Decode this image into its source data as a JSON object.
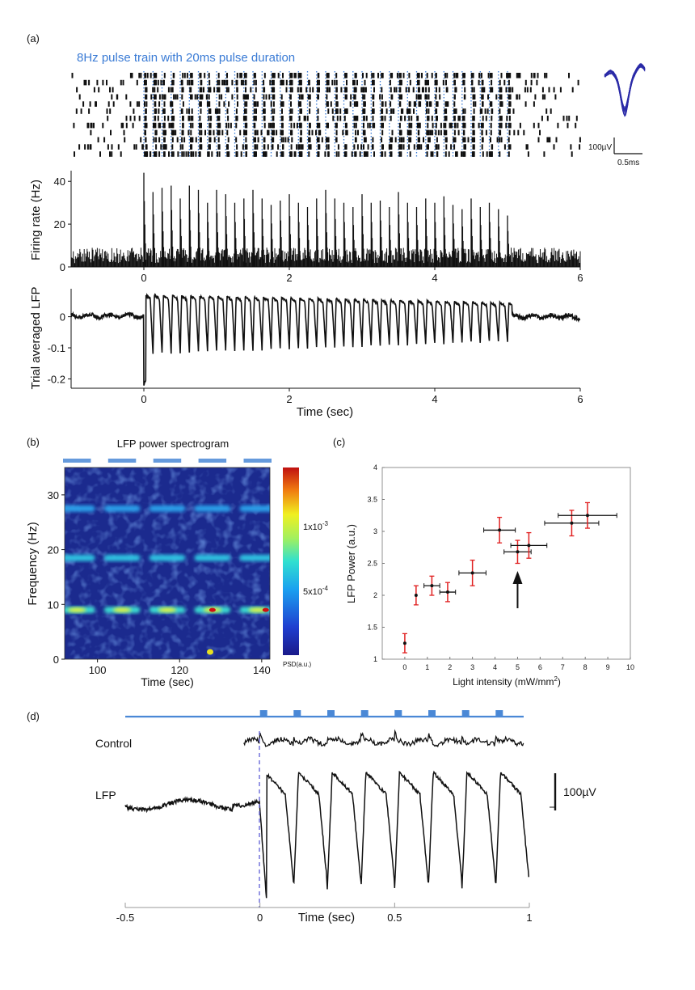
{
  "panel_labels": [
    "(a)",
    "(b)",
    "(c)",
    "(d)"
  ],
  "colors": {
    "blue": "#3a7bd5",
    "stim": "#4a88d6",
    "trace": "#111111",
    "err_red": "#e02020",
    "dash": "#6a6ad8"
  },
  "chart_data": [
    {
      "id": "a-raster",
      "type": "scatter",
      "title": "8Hz pulse train with 20ms pulse duration",
      "trials": 12,
      "stim_rate_hz": 8,
      "stim_window_sec": [
        0,
        5
      ],
      "xlim": [
        -1,
        6
      ],
      "waveform_inset": {
        "scale_y": "100µV",
        "scale_x": "0.5ms"
      }
    },
    {
      "id": "a-psth",
      "type": "bar",
      "xlabel": "",
      "ylabel": "Firing rate (Hz)",
      "xlim": [
        -1,
        6
      ],
      "ylim": [
        0,
        45
      ],
      "xticks": [
        "0",
        "2",
        "4",
        "6"
      ],
      "yticks": [
        "0",
        "20",
        "40"
      ],
      "baseline_hz": 6,
      "peaks": {
        "t": [
          0.0,
          0.125,
          0.25,
          0.375,
          0.5,
          0.625,
          0.75,
          0.875,
          1.0,
          1.125,
          1.25,
          1.375,
          1.5,
          1.625,
          1.75,
          1.875,
          2.0,
          2.125,
          2.25,
          2.375,
          2.5,
          2.625,
          2.75,
          2.875,
          3.0,
          3.125,
          3.25,
          3.375,
          3.5,
          3.625,
          3.75,
          3.875,
          4.0,
          4.125,
          4.25,
          4.375,
          4.5,
          4.625,
          4.75,
          4.875,
          5.0
        ],
        "rate": [
          44,
          35,
          37,
          38,
          32,
          38,
          36,
          30,
          36,
          34,
          30,
          32,
          36,
          32,
          29,
          31,
          34,
          30,
          28,
          32,
          36,
          32,
          30,
          28,
          34,
          30,
          31,
          28,
          35,
          30,
          28,
          32,
          30,
          33,
          29,
          27,
          32,
          28,
          30,
          27,
          24
        ]
      }
    },
    {
      "id": "a-lfp",
      "type": "line",
      "xlabel": "Time (sec)",
      "ylabel": "Trial averaged LFP",
      "xlim": [
        -1,
        6
      ],
      "ylim": [
        -0.23,
        0.09
      ],
      "xticks": [
        "0",
        "2",
        "4",
        "6"
      ],
      "yticks": [
        "0",
        "-0.1",
        "-0.2"
      ]
    },
    {
      "id": "b-spectrogram",
      "type": "heatmap",
      "title": "LFP power spectrogram",
      "xlabel": "Time (sec)",
      "ylabel": "Frequency (Hz)",
      "xlim": [
        92,
        142
      ],
      "ylim": [
        0,
        35
      ],
      "xticks": [
        "100",
        "120",
        "140"
      ],
      "yticks": [
        "0",
        "10",
        "20",
        "30"
      ],
      "bands_hz": [
        9,
        18.5,
        27.5
      ],
      "block_centers_sec": [
        95,
        106,
        117,
        128,
        139
      ],
      "colorbar": {
        "label": "PSD(a.u.)",
        "ticks": [
          "1x10",
          "5x10"
        ],
        "exponents": [
          "-3",
          "-4"
        ]
      }
    },
    {
      "id": "c-scatter",
      "type": "scatter",
      "xlabel": "Light intensity (mW/mm",
      "xlabel_sup": "2",
      "xlabel_end": ")",
      "ylabel": "LFP Power (a.u.)",
      "xlim": [
        -1,
        10
      ],
      "ylim": [
        1,
        4
      ],
      "xticks": [
        "0",
        "1",
        "2",
        "3",
        "4",
        "5",
        "6",
        "7",
        "8",
        "9",
        "10"
      ],
      "yticks": [
        "1",
        "1.5",
        "2",
        "2.5",
        "3",
        "3.5",
        "4"
      ],
      "points": {
        "x": [
          0.0,
          0.5,
          1.2,
          1.9,
          3.0,
          4.2,
          5.0,
          5.5,
          7.4,
          8.1
        ],
        "y": [
          1.25,
          2.0,
          2.15,
          2.05,
          2.35,
          3.02,
          2.68,
          2.78,
          3.13,
          3.25
        ],
        "x_err": [
          0.0,
          0.0,
          0.35,
          0.35,
          0.6,
          0.7,
          0.6,
          0.8,
          1.2,
          1.3
        ],
        "y_err": [
          0.15,
          0.15,
          0.15,
          0.15,
          0.2,
          0.2,
          0.18,
          0.2,
          0.2,
          0.2
        ]
      },
      "arrow_at_x": 5.0
    },
    {
      "id": "d-lfp",
      "type": "line",
      "xlabel": "Time (sec)",
      "xlim": [
        -0.5,
        1
      ],
      "xticks": [
        "-0.5",
        "0",
        "0.5",
        "1"
      ],
      "traces": [
        "Control",
        "LFP"
      ],
      "scale_bar": "100µV",
      "pulse_times_sec": [
        0.0,
        0.125,
        0.25,
        0.375,
        0.5,
        0.625,
        0.75,
        0.875
      ]
    }
  ]
}
